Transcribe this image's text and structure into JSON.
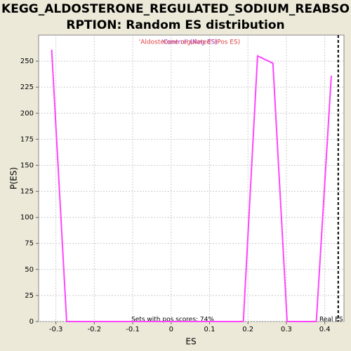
{
  "chart_data": {
    "type": "line",
    "title_lines": [
      "KEGG_ALDOSTERONE_REGULATED_SODIUM_REABSO",
      "RPTION: Random ES distribution"
    ],
    "x_label": "ES",
    "y_label": "P(ES)",
    "series": [
      {
        "name": "'Aldosterone regulated' (Pos ES)",
        "color": "#ff44ff",
        "x": [
          -0.311,
          -0.272,
          0.188,
          0.225,
          0.265,
          0.302,
          0.378,
          0.417
        ],
        "values": [
          261,
          0,
          0,
          255,
          248,
          0,
          0,
          236
        ]
      }
    ],
    "legend_texts": [
      {
        "text": "'Control' (Neg ES)",
        "color": "#9933cc"
      },
      {
        "text": "'Aldosterone regulated' (Pos ES)",
        "color": "#e04040"
      }
    ],
    "real_es": 0.435,
    "real_es_label": "Real ES",
    "pos_scores_note": "Sets with pos scores: 74%",
    "xlim": [
      -0.345,
      0.45
    ],
    "ylim": [
      0,
      275
    ],
    "xticks": [
      -0.3,
      -0.2,
      -0.1,
      0,
      0.1,
      0.2,
      0.3,
      0.4
    ],
    "yticks": [
      0,
      25,
      50,
      75,
      100,
      125,
      150,
      175,
      200,
      225,
      250
    ],
    "grid": true
  }
}
